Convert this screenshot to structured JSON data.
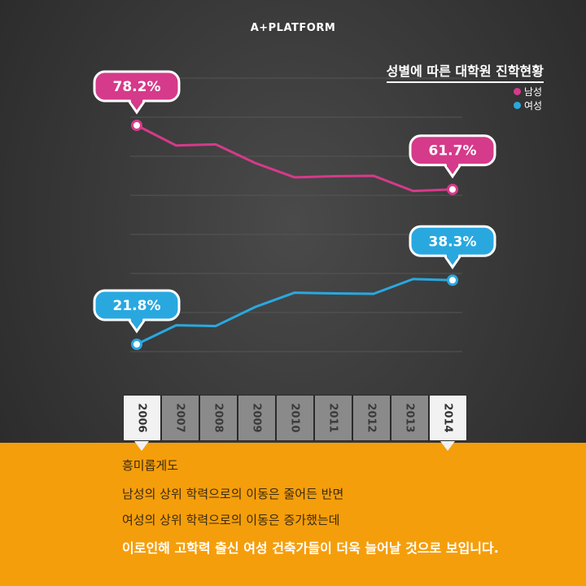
{
  "brand": "A+PLATFORM",
  "title": "성별에 따른 대학원 진학현황",
  "legend": [
    {
      "label": "남성",
      "color": "#d63a8a"
    },
    {
      "label": "여성",
      "color": "#29a8e0"
    }
  ],
  "chart_data": {
    "type": "line",
    "title": "성별에 따른 대학원 진학현황",
    "categories": [
      "2006",
      "2007",
      "2008",
      "2009",
      "2010",
      "2011",
      "2012",
      "2013",
      "2014"
    ],
    "series": [
      {
        "name": "남성",
        "color": "#d63a8a",
        "values": [
          78.2,
          73.0,
          73.3,
          68.5,
          64.8,
          65.1,
          65.2,
          61.3,
          61.7
        ]
      },
      {
        "name": "여성",
        "color": "#29a8e0",
        "values": [
          21.8,
          26.7,
          26.5,
          31.4,
          35.1,
          34.9,
          34.8,
          38.6,
          38.3
        ]
      }
    ],
    "callouts": [
      {
        "series": 0,
        "index": 0,
        "label": "78.2%"
      },
      {
        "series": 0,
        "index": 8,
        "label": "61.7%"
      },
      {
        "series": 1,
        "index": 0,
        "label": "21.8%"
      },
      {
        "series": 1,
        "index": 8,
        "label": "38.3%"
      }
    ],
    "highlighted_years": [
      "2006",
      "2014"
    ],
    "grid": true,
    "legend_position": "top-right"
  },
  "years": [
    "2006",
    "2007",
    "2008",
    "2009",
    "2010",
    "2011",
    "2012",
    "2013",
    "2014"
  ],
  "text": {
    "line1": "흥미롭게도",
    "line2": "남성의 상위 학력으로의 이동은 줄어든 반면",
    "line3": "여성의 상위 학력으로의 이동은 증가했는데",
    "line4": "이로인해 고학력 출신 여성 건축가들이 더욱 늘어날 것으로 보입니다."
  }
}
